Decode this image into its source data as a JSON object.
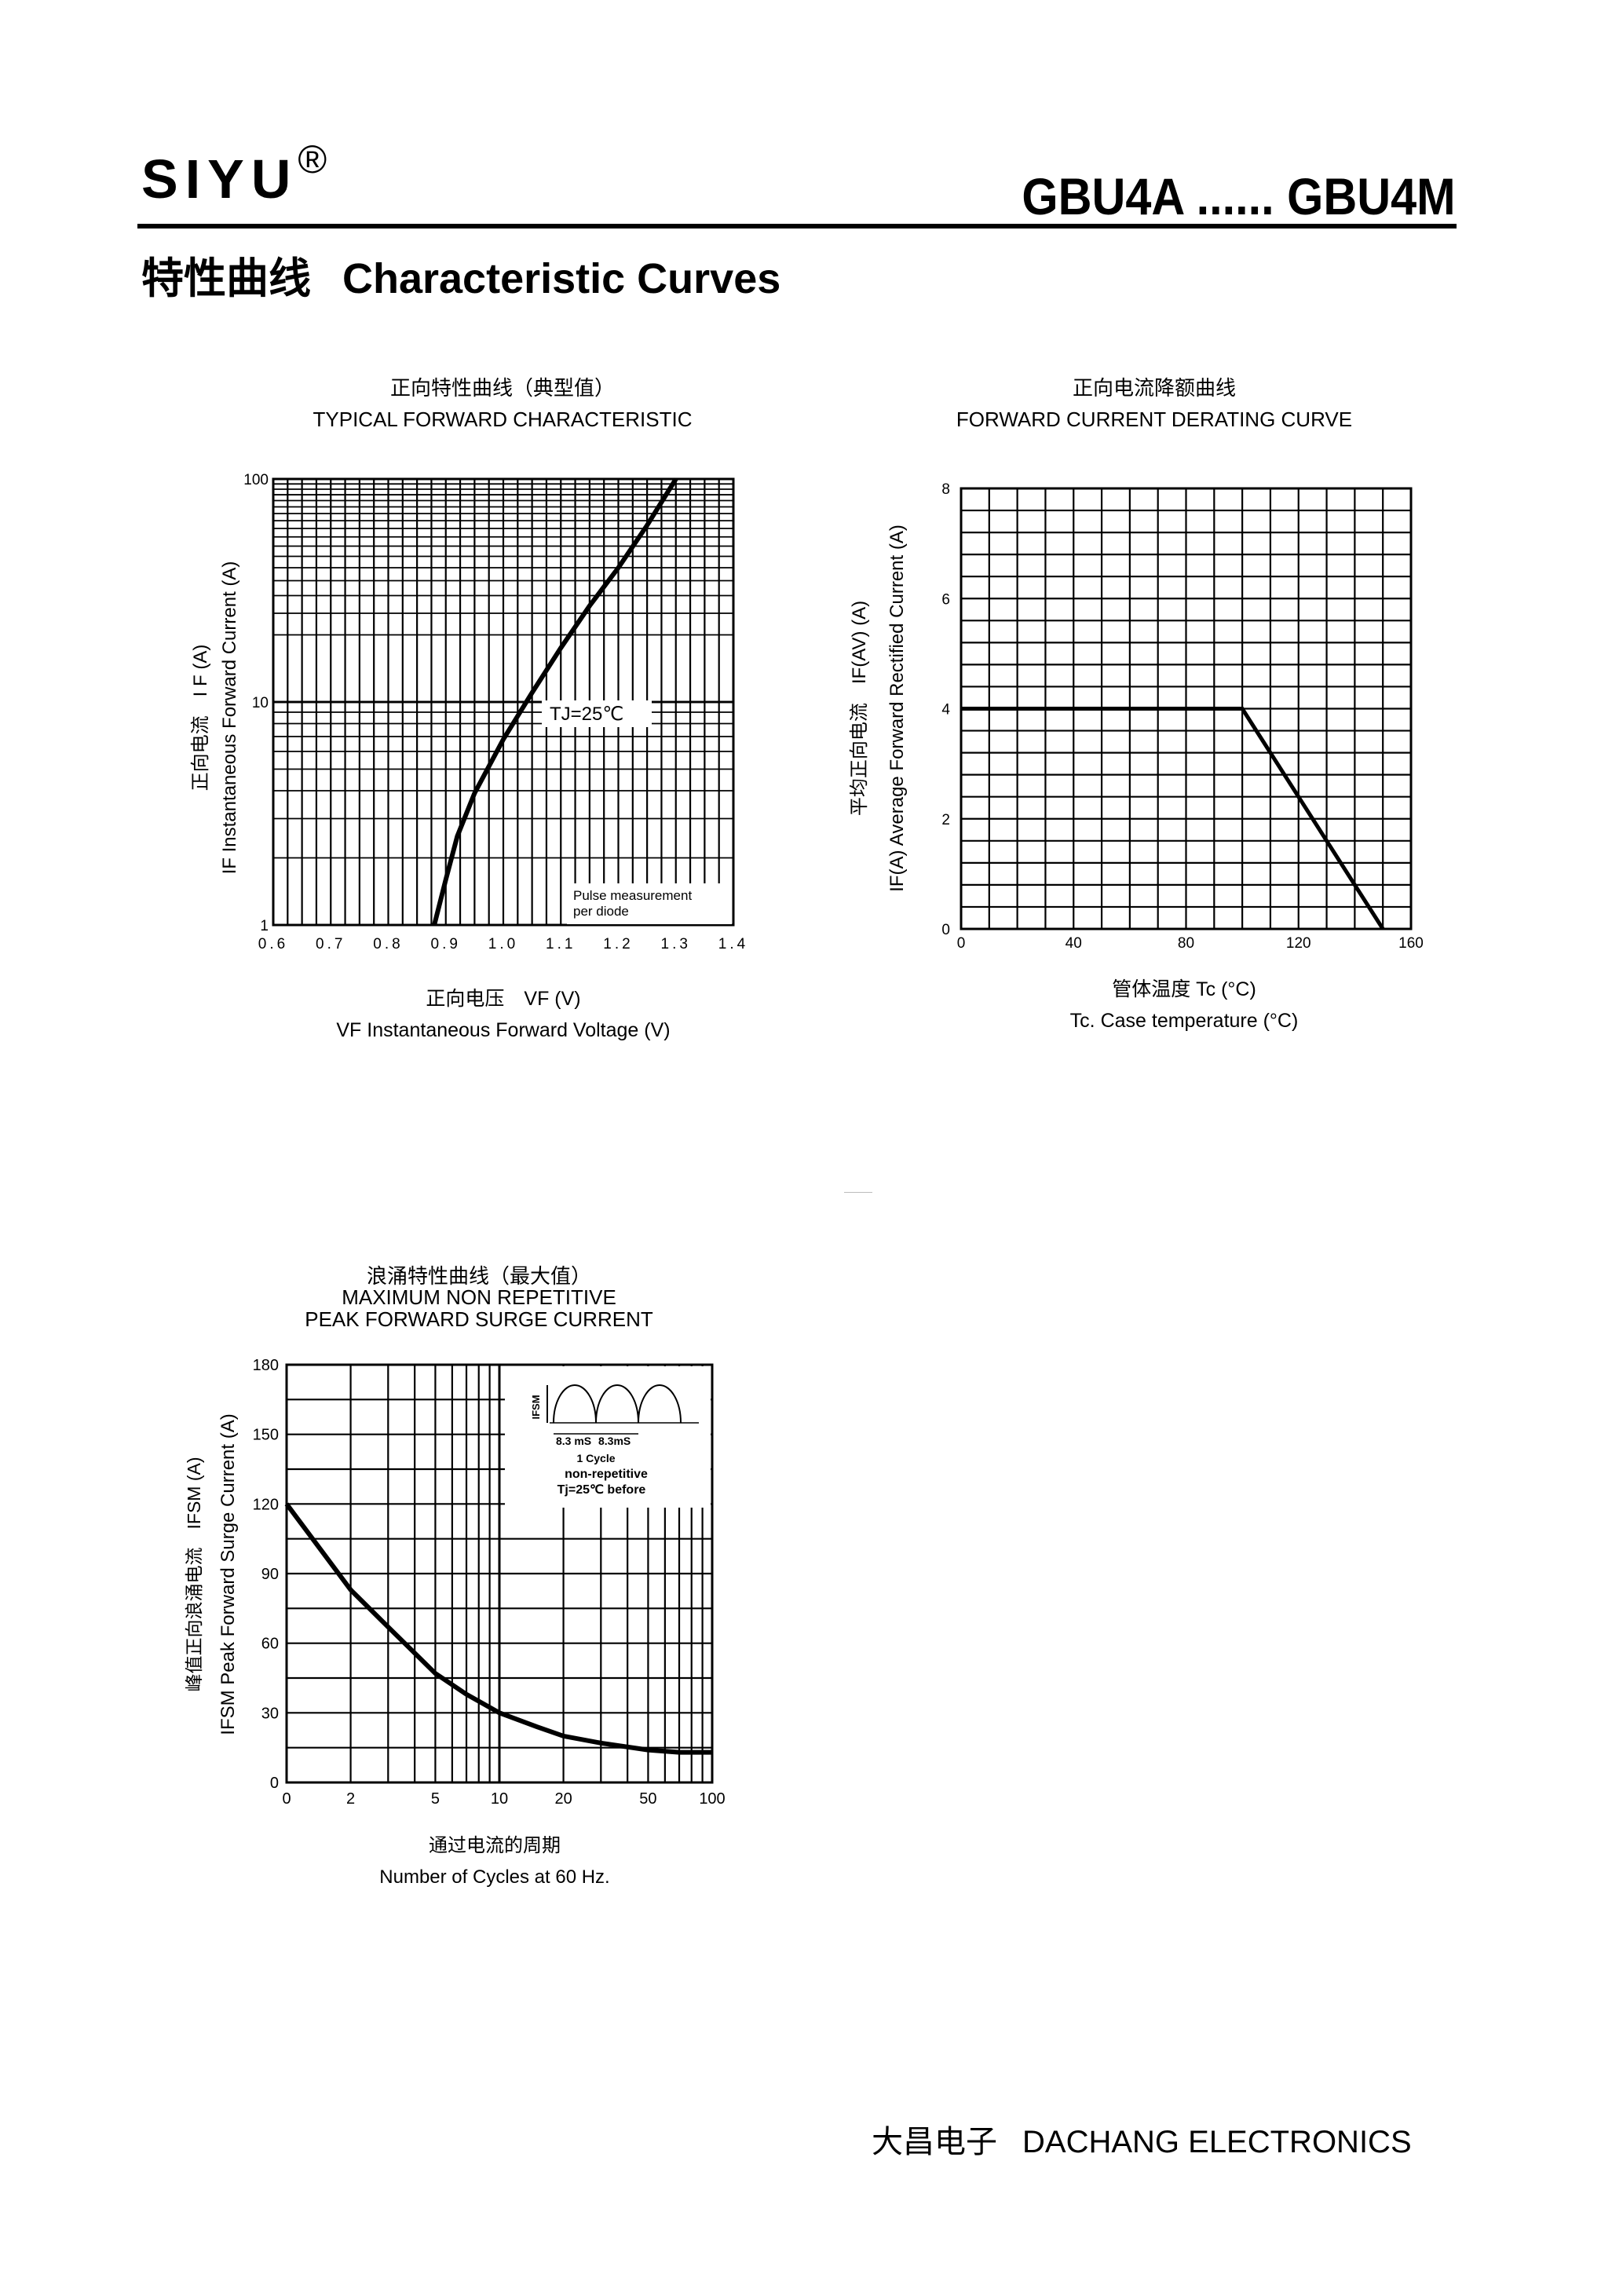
{
  "header": {
    "brand": "SIYU",
    "registered": "®",
    "model": "GBU4A ...... GBU4M"
  },
  "section": {
    "title_cn": "特性曲线",
    "title_en": "Characteristic Curves"
  },
  "charts": {
    "forward": {
      "title_cn": "正向特性曲线（典型值）",
      "title_en": "TYPICAL FORWARD CHARACTERISTIC",
      "ylabel_cn": "正向电流　I F (A)",
      "ylabel_en": "IF Instantaneous Forward Current (A)",
      "xlabel_cn": "正向电压　VF (V)",
      "xlabel_en": "VF  Instantaneous Forward Voltage (V)",
      "annotation": "TJ=25℃",
      "note_line1": "Pulse measurement",
      "note_line2": "per diode",
      "xticks": [
        "0.6",
        "0.7",
        "0.8",
        "0.9",
        "1.0",
        "1.1",
        "1.2",
        "1.3",
        "1.4"
      ],
      "yticks": [
        "1",
        "10",
        "100"
      ]
    },
    "derating": {
      "title_cn": "正向电流降额曲线",
      "title_en": "FORWARD CURRENT DERATING CURVE",
      "ylabel_cn": "平均正向电流　IF(AV) (A)",
      "ylabel_en": "IF(A)  Average Forward Rectified Current (A)",
      "xlabel_cn": "管体温度  Tc (°C)",
      "xlabel_en": "Tc. Case temperature (°C)",
      "xticks": [
        "0",
        "40",
        "80",
        "120",
        "160"
      ],
      "yticks": [
        "0",
        "2",
        "4",
        "6",
        "8"
      ]
    },
    "surge": {
      "title_cn": "浪涌特性曲线（最大值）",
      "title_en1": "MAXIMUM NON REPETITIVE",
      "title_en2": "PEAK FORWARD SURGE CURRENT",
      "ylabel_cn": "峰值正向浪涌电流　IFSM (A)",
      "ylabel_en": "IFSM Peak Forward Surge Current (A)",
      "xlabel_cn": "通过电流的周期",
      "xlabel_en": "Number  of  Cycles at 60 Hz.",
      "inset_ifsm": "IFSM",
      "inset_t1": "8.3 mS",
      "inset_t2": "8.3mS",
      "inset_cycle": "1 Cycle",
      "inset_nonrep": "non-repetitive",
      "inset_cond": "Tj=25℃   before",
      "xticks": [
        "0",
        "2",
        "5",
        "10",
        "20",
        "50",
        "100"
      ],
      "yticks": [
        "0",
        "30",
        "60",
        "90",
        "120",
        "150",
        "180"
      ]
    }
  },
  "chart_data": [
    {
      "type": "line",
      "title": "TYPICAL FORWARD CHARACTERISTIC",
      "xlabel": "VF  Instantaneous Forward Voltage (V)",
      "ylabel": "IF Instantaneous Forward Current (A)",
      "xlim": [
        0.6,
        1.4
      ],
      "ylim": [
        1,
        100
      ],
      "yscale": "log",
      "grid": true,
      "x": [
        0.88,
        0.9,
        0.92,
        0.95,
        1.0,
        1.05,
        1.1,
        1.15,
        1.2,
        1.25,
        1.3
      ],
      "y": [
        1.0,
        1.6,
        2.5,
        3.9,
        6.8,
        11.0,
        17.5,
        27.0,
        40.0,
        62.0,
        100.0
      ]
    },
    {
      "type": "line",
      "title": "FORWARD CURRENT DERATING CURVE",
      "xlabel": "Tc. Case temperature (°C)",
      "ylabel": "Average Forward Rectified Current (A)",
      "xlim": [
        0,
        160
      ],
      "ylim": [
        0,
        8
      ],
      "grid": true,
      "x": [
        0,
        100,
        150
      ],
      "y": [
        4,
        4,
        0
      ]
    },
    {
      "type": "line",
      "title": "MAXIMUM NON REPETITIVE PEAK FORWARD SURGE CURRENT",
      "xlabel": "Number  of  Cycles at 60 Hz.",
      "ylabel": "IFSM Peak Forward Surge Current (A)",
      "xlim": [
        1,
        100
      ],
      "ylim": [
        0,
        180
      ],
      "xscale": "log",
      "grid": true,
      "x": [
        1,
        2,
        3,
        5,
        7,
        10,
        15,
        20,
        30,
        50,
        70,
        100
      ],
      "y": [
        120,
        83,
        67,
        47,
        38,
        30,
        24,
        20,
        17,
        14,
        13,
        13
      ]
    }
  ]
}
